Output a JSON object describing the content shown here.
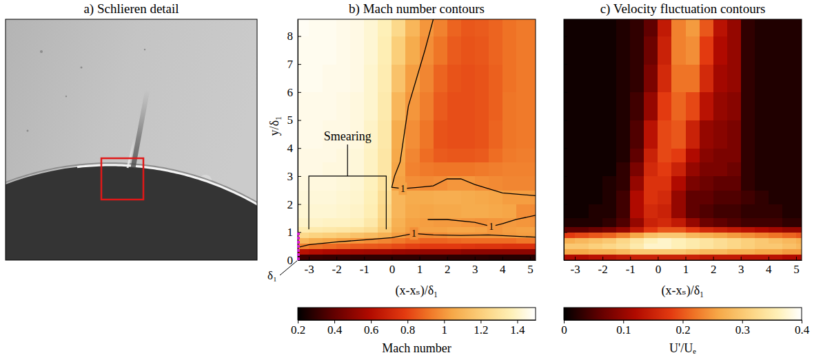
{
  "chart_data": [
    {
      "type": "image",
      "title": "a) Schlieren detail"
    },
    {
      "type": "heatmap",
      "title": "b) Mach number contours",
      "x_label": "(x-xₛ)/δ₁",
      "y_label": "y/δ₁",
      "xlim": [
        -3.4,
        5.2
      ],
      "ylim": [
        0,
        8.6
      ],
      "xticks": [
        -3,
        -2,
        -1,
        0,
        1,
        2,
        3,
        4,
        5
      ],
      "yticks": [
        0,
        1,
        2,
        3,
        4,
        5,
        6,
        7,
        8
      ],
      "x_edges": [
        -3.4,
        -3,
        -2.5,
        -2,
        -1.5,
        -1,
        -0.5,
        0,
        0.5,
        1,
        1.5,
        2,
        2.5,
        3,
        3.5,
        4,
        4.5,
        5,
        5.2
      ],
      "y_edges": [
        0,
        0.2,
        0.4,
        0.6,
        0.8,
        1,
        1.2,
        1.5,
        2,
        2.5,
        3,
        3.5,
        4,
        5,
        6,
        7,
        8,
        8.6
      ],
      "cells": [
        [
          0.32,
          0.32,
          0.31,
          0.31,
          0.3,
          0.3,
          0.3,
          0.3,
          0.3,
          0.3,
          0.3,
          0.29,
          0.29,
          0.29,
          0.28,
          0.28,
          0.28,
          0.28
        ],
        [
          0.62,
          0.6,
          0.58,
          0.57,
          0.56,
          0.55,
          0.55,
          0.54,
          0.53,
          0.52,
          0.52,
          0.52,
          0.5,
          0.5,
          0.5,
          0.5,
          0.5,
          0.5
        ],
        [
          0.95,
          0.92,
          0.9,
          0.88,
          0.86,
          0.85,
          0.84,
          0.82,
          0.8,
          0.78,
          0.78,
          0.78,
          0.77,
          0.76,
          0.76,
          0.75,
          0.75,
          0.75
        ],
        [
          1.1,
          1.06,
          1.04,
          1.02,
          1.0,
          0.98,
          0.96,
          0.93,
          0.9,
          0.88,
          0.88,
          0.89,
          0.9,
          0.9,
          0.9,
          0.9,
          0.92,
          0.93
        ],
        [
          1.25,
          1.22,
          1.2,
          1.18,
          1.15,
          1.12,
          1.08,
          1.02,
          0.98,
          0.97,
          0.98,
          1.0,
          1.0,
          1.0,
          1.0,
          1.01,
          1.02,
          1.02
        ],
        [
          1.35,
          1.34,
          1.33,
          1.32,
          1.3,
          1.27,
          1.18,
          1.06,
          1.02,
          1.03,
          1.03,
          1.04,
          1.04,
          1.03,
          1.0,
          1.02,
          1.03,
          1.03
        ],
        [
          1.4,
          1.4,
          1.39,
          1.39,
          1.38,
          1.33,
          1.22,
          1.08,
          1.03,
          1.02,
          1.01,
          1.01,
          1.0,
          0.99,
          1.0,
          1.01,
          1.0,
          0.99
        ],
        [
          1.42,
          1.42,
          1.42,
          1.41,
          1.4,
          1.36,
          1.25,
          1.1,
          1.05,
          1.04,
          1.05,
          1.05,
          1.06,
          1.06,
          1.05,
          1.04,
          0.98,
          0.97
        ],
        [
          1.43,
          1.43,
          1.43,
          1.42,
          1.41,
          1.37,
          1.27,
          1.1,
          1.06,
          1.06,
          1.07,
          1.07,
          1.06,
          1.05,
          1.04,
          1.02,
          1.02,
          1.01
        ],
        [
          1.44,
          1.44,
          1.44,
          1.43,
          1.42,
          1.38,
          1.3,
          1.03,
          0.98,
          0.97,
          0.98,
          1.0,
          1.0,
          0.98,
          0.97,
          0.96,
          0.96,
          0.96
        ],
        [
          1.45,
          1.45,
          1.44,
          1.44,
          1.43,
          1.39,
          1.32,
          1.04,
          0.95,
          0.93,
          0.92,
          0.92,
          0.92,
          0.93,
          0.94,
          0.95,
          0.95,
          0.95
        ],
        [
          1.45,
          1.45,
          1.45,
          1.44,
          1.43,
          1.39,
          1.32,
          1.05,
          0.96,
          0.9,
          0.86,
          0.85,
          0.85,
          0.86,
          0.9,
          0.93,
          0.94,
          0.94
        ],
        [
          1.46,
          1.46,
          1.45,
          1.45,
          1.44,
          1.4,
          1.33,
          1.06,
          0.98,
          0.92,
          0.84,
          0.83,
          0.83,
          0.84,
          0.88,
          0.92,
          0.93,
          0.93
        ],
        [
          1.46,
          1.46,
          1.46,
          1.45,
          1.44,
          1.41,
          1.34,
          1.1,
          1.0,
          0.94,
          0.86,
          0.83,
          0.83,
          0.84,
          0.87,
          0.92,
          0.93,
          0.93
        ],
        [
          1.47,
          1.47,
          1.46,
          1.46,
          1.45,
          1.41,
          1.35,
          1.15,
          1.02,
          0.96,
          0.88,
          0.84,
          0.83,
          0.84,
          0.87,
          0.91,
          0.93,
          0.93
        ],
        [
          1.47,
          1.47,
          1.47,
          1.46,
          1.45,
          1.42,
          1.36,
          1.2,
          1.06,
          0.98,
          0.92,
          0.86,
          0.84,
          0.85,
          0.88,
          0.91,
          0.93,
          0.93
        ],
        [
          1.48,
          1.47,
          1.47,
          1.46,
          1.45,
          1.42,
          1.37,
          1.25,
          1.1,
          1.0,
          0.95,
          0.88,
          0.85,
          0.86,
          0.88,
          0.91,
          0.93,
          0.93
        ]
      ],
      "colorbar": {
        "label": "Mach number",
        "range": [
          0.2,
          1.5
        ],
        "ticks": [
          0.2,
          0.4,
          0.6,
          0.8,
          1,
          1.2,
          1.4
        ]
      },
      "contours": [
        {
          "level": 1,
          "x": [
            -3.4,
            -3,
            -2,
            -1,
            0,
            0.8,
            1.5,
            2.5,
            3.5,
            4.5,
            5.2
          ],
          "y": [
            0.45,
            0.55,
            0.65,
            0.72,
            0.8,
            0.95,
            0.9,
            0.88,
            0.9,
            0.85,
            0.82
          ]
        },
        {
          "level": 1,
          "x": [
            1.5,
            1.2,
            0.9,
            0.6,
            0.45,
            0.3,
            0.1,
            0,
            0.4,
            1,
            1.5,
            2,
            2.5,
            3,
            4,
            5.2
          ],
          "y": [
            8.6,
            7.5,
            6.5,
            5.5,
            4.5,
            3.5,
            3.0,
            2.6,
            2.55,
            2.6,
            2.65,
            2.9,
            2.9,
            2.7,
            2.4,
            2.3
          ]
        },
        {
          "level": 1,
          "x": [
            1.3,
            2,
            3,
            3.6,
            4,
            4.5,
            5.2
          ],
          "y": [
            1.45,
            1.45,
            1.35,
            1.2,
            1.3,
            1.45,
            1.6
          ]
        }
      ],
      "annotations": [
        {
          "text": "Smearing",
          "x": [
            -3,
            -0.2
          ],
          "y": [
            1.1,
            3
          ]
        }
      ],
      "reference": {
        "label": "δ₁",
        "x": -3.4,
        "y": [
          0,
          1
        ]
      }
    },
    {
      "type": "heatmap",
      "title": "c) Velocity fluctuation contours",
      "x_label": "(x-xₛ)/δ₁",
      "xlim": [
        -3.4,
        5.2
      ],
      "ylim": [
        0,
        8.6
      ],
      "xticks": [
        -3,
        -2,
        -1,
        0,
        1,
        2,
        3,
        4,
        5
      ],
      "yticks": [
        0,
        1,
        2,
        3,
        4,
        5,
        6,
        7,
        8
      ],
      "tick_labels": "x",
      "x_edges": [
        -3.4,
        -3,
        -2.5,
        -2,
        -1.5,
        -1,
        -0.5,
        0,
        0.5,
        1,
        1.5,
        2,
        2.5,
        3,
        3.5,
        4,
        4.5,
        5,
        5.2
      ],
      "y_edges": [
        0,
        0.2,
        0.4,
        0.6,
        0.8,
        1,
        1.2,
        1.5,
        2,
        2.5,
        3,
        3.5,
        4,
        5,
        6,
        7,
        8,
        8.6
      ],
      "cells": [
        [
          0.12,
          0.12,
          0.13,
          0.13,
          0.14,
          0.15,
          0.15,
          0.15,
          0.15,
          0.15,
          0.14,
          0.14,
          0.14,
          0.13,
          0.13,
          0.13,
          0.12,
          0.12
        ],
        [
          0.26,
          0.26,
          0.27,
          0.27,
          0.28,
          0.3,
          0.3,
          0.3,
          0.3,
          0.29,
          0.28,
          0.28,
          0.27,
          0.27,
          0.26,
          0.26,
          0.25,
          0.25
        ],
        [
          0.3,
          0.3,
          0.31,
          0.32,
          0.33,
          0.35,
          0.37,
          0.37,
          0.36,
          0.35,
          0.34,
          0.33,
          0.32,
          0.31,
          0.3,
          0.3,
          0.29,
          0.28
        ],
        [
          0.27,
          0.28,
          0.29,
          0.3,
          0.32,
          0.34,
          0.36,
          0.37,
          0.36,
          0.35,
          0.34,
          0.33,
          0.32,
          0.31,
          0.3,
          0.29,
          0.28,
          0.27
        ],
        [
          0.18,
          0.19,
          0.2,
          0.21,
          0.23,
          0.26,
          0.29,
          0.3,
          0.3,
          0.28,
          0.27,
          0.26,
          0.25,
          0.24,
          0.23,
          0.22,
          0.21,
          0.2
        ],
        [
          0.06,
          0.06,
          0.07,
          0.08,
          0.1,
          0.14,
          0.18,
          0.2,
          0.2,
          0.18,
          0.16,
          0.15,
          0.14,
          0.13,
          0.12,
          0.11,
          0.1,
          0.1
        ],
        [
          0.02,
          0.02,
          0.02,
          0.03,
          0.05,
          0.1,
          0.15,
          0.16,
          0.14,
          0.1,
          0.07,
          0.06,
          0.05,
          0.04,
          0.04,
          0.04,
          0.03,
          0.03
        ],
        [
          0.01,
          0.01,
          0.02,
          0.02,
          0.04,
          0.12,
          0.16,
          0.15,
          0.1,
          0.06,
          0.05,
          0.04,
          0.04,
          0.03,
          0.03,
          0.03,
          0.02,
          0.02
        ],
        [
          0.01,
          0.01,
          0.01,
          0.02,
          0.04,
          0.12,
          0.17,
          0.16,
          0.1,
          0.06,
          0.06,
          0.05,
          0.05,
          0.04,
          0.03,
          0.02,
          0.02,
          0.02
        ],
        [
          0.01,
          0.01,
          0.01,
          0.02,
          0.03,
          0.1,
          0.17,
          0.17,
          0.12,
          0.08,
          0.07,
          0.06,
          0.06,
          0.03,
          0.02,
          0.02,
          0.02,
          0.02
        ],
        [
          0.01,
          0.01,
          0.01,
          0.01,
          0.03,
          0.08,
          0.16,
          0.18,
          0.15,
          0.1,
          0.08,
          0.08,
          0.07,
          0.03,
          0.02,
          0.02,
          0.02,
          0.02
        ],
        [
          0.01,
          0.01,
          0.01,
          0.01,
          0.02,
          0.06,
          0.15,
          0.19,
          0.18,
          0.12,
          0.09,
          0.08,
          0.08,
          0.03,
          0.02,
          0.02,
          0.02,
          0.02
        ],
        [
          0.01,
          0.01,
          0.01,
          0.01,
          0.02,
          0.05,
          0.13,
          0.19,
          0.2,
          0.15,
          0.1,
          0.09,
          0.08,
          0.03,
          0.02,
          0.02,
          0.02,
          0.02
        ],
        [
          0.01,
          0.01,
          0.01,
          0.01,
          0.02,
          0.04,
          0.1,
          0.18,
          0.21,
          0.19,
          0.13,
          0.1,
          0.09,
          0.03,
          0.02,
          0.02,
          0.02,
          0.02
        ],
        [
          0.01,
          0.01,
          0.01,
          0.01,
          0.02,
          0.03,
          0.08,
          0.16,
          0.22,
          0.22,
          0.16,
          0.11,
          0.1,
          0.03,
          0.02,
          0.02,
          0.02,
          0.02
        ],
        [
          0.01,
          0.01,
          0.01,
          0.01,
          0.02,
          0.03,
          0.07,
          0.15,
          0.23,
          0.24,
          0.18,
          0.12,
          0.1,
          0.03,
          0.02,
          0.02,
          0.02,
          0.02
        ],
        [
          0.01,
          0.01,
          0.01,
          0.01,
          0.02,
          0.03,
          0.06,
          0.14,
          0.23,
          0.25,
          0.2,
          0.13,
          0.1,
          0.03,
          0.02,
          0.02,
          0.02,
          0.02
        ]
      ],
      "colorbar": {
        "label": "U'/Uₑ",
        "range": [
          0,
          0.4
        ],
        "ticks": [
          0,
          0.1,
          0.2,
          0.3,
          0.4
        ]
      }
    }
  ]
}
